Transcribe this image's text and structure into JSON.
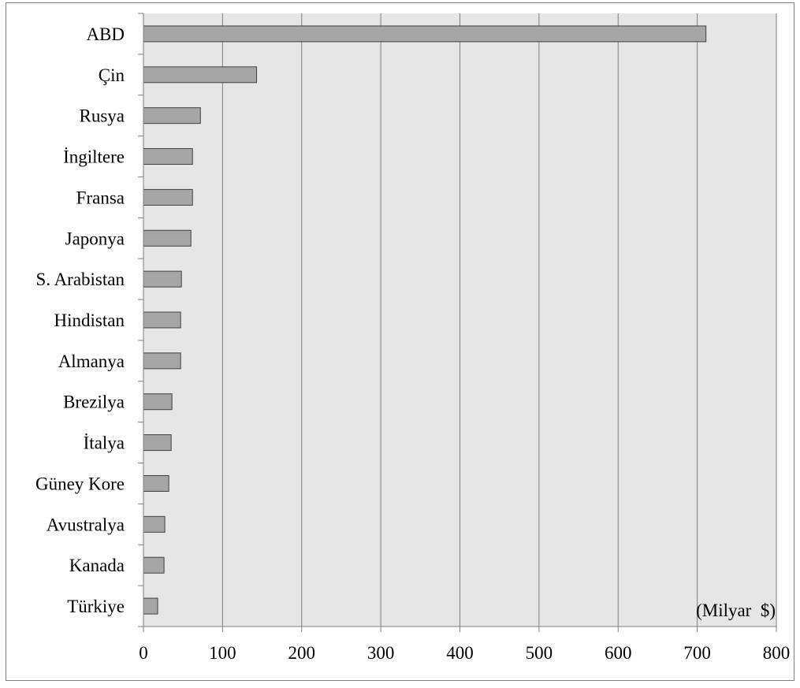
{
  "chart_data": {
    "type": "bar",
    "orientation": "horizontal",
    "categories": [
      "ABD",
      "Çin",
      "Rusya",
      "İngiltere",
      "Fransa",
      "Japonya",
      "S. Arabistan",
      "Hindistan",
      "Almanya",
      "Brezilya",
      "İtalya",
      "Güney Kore",
      "Avustralya",
      "Kanada",
      "Türkiye"
    ],
    "values": [
      711,
      143,
      72,
      62,
      62,
      60,
      48,
      47,
      47,
      36,
      35,
      32,
      27,
      26,
      18
    ],
    "unit_label": "(Milyar  $)",
    "xlim": [
      0,
      800
    ],
    "x_ticks": [
      "0",
      "100",
      "200",
      "300",
      "400",
      "500",
      "600",
      "700",
      "800"
    ],
    "grid": "vertical",
    "colors": {
      "plot_background": "#e6e6e6",
      "bar_fill": "#a6a6a6",
      "bar_stroke": "#404040",
      "gridline": "#7f7f7f"
    }
  }
}
